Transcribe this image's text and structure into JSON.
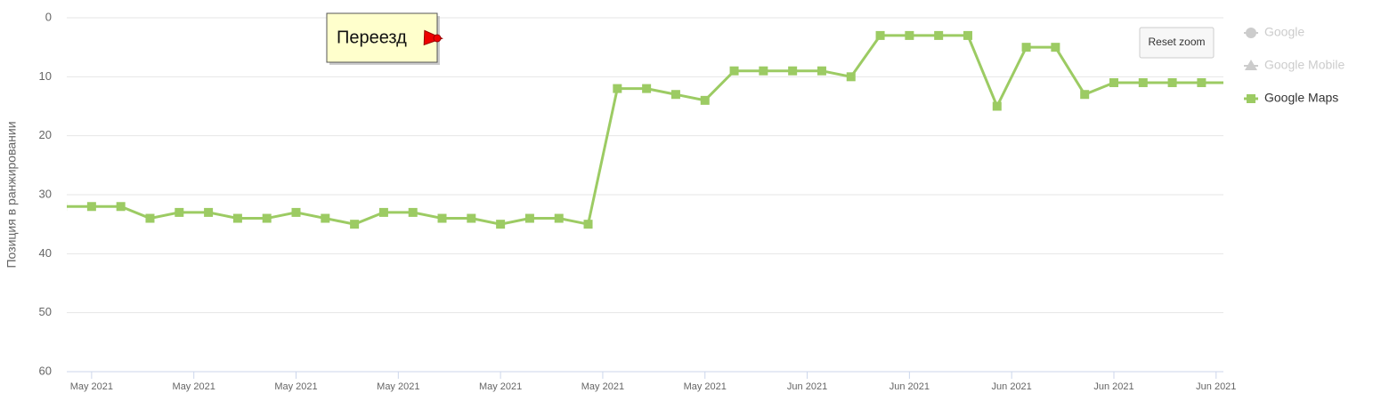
{
  "chart_data": {
    "type": "line",
    "y_axis_title": "Позиция в ранжировании",
    "ylim": [
      60,
      0
    ],
    "yticks": [
      0,
      10,
      20,
      30,
      40,
      50,
      60
    ],
    "y_reversed": true,
    "grid": true,
    "xlim": [
      -1.7,
      77.5
    ],
    "xticks": [
      {
        "value": 0,
        "label": "May 2021"
      },
      {
        "value": 7,
        "label": "May 2021"
      },
      {
        "value": 14,
        "label": "May 2021"
      },
      {
        "value": 21,
        "label": "May 2021"
      },
      {
        "value": 28,
        "label": "May 2021"
      },
      {
        "value": 35,
        "label": "May 2021"
      },
      {
        "value": 42,
        "label": "May 2021"
      },
      {
        "value": 49,
        "label": "Jun 2021"
      },
      {
        "value": 56,
        "label": "Jun 2021"
      },
      {
        "value": 63,
        "label": "Jun 2021"
      },
      {
        "value": 70,
        "label": "Jun 2021"
      },
      {
        "value": 77,
        "label": "Jun 2021"
      }
    ],
    "series": [
      {
        "name": "Google Maps",
        "color": "#9ccb63",
        "x": [
          -2,
          0,
          2,
          4,
          6,
          8,
          10,
          12,
          14,
          16,
          18,
          20,
          22,
          24,
          26,
          28,
          30,
          32,
          34,
          36,
          38,
          40,
          42,
          44,
          46,
          48,
          50,
          52,
          54,
          56,
          58,
          60,
          62,
          64,
          66,
          68,
          70,
          72,
          74,
          76,
          78
        ],
        "values": [
          32,
          32,
          32,
          34,
          33,
          33,
          34,
          34,
          33,
          34,
          35,
          33,
          33,
          34,
          34,
          35,
          34,
          34,
          35,
          12,
          12,
          13,
          14,
          9,
          9,
          9,
          9,
          10,
          3,
          3,
          3,
          3,
          15,
          5,
          5,
          13,
          11,
          11,
          11,
          11,
          11
        ]
      }
    ],
    "disabled_legend_entries": [
      {
        "name": "Google",
        "color": "#cccccc",
        "marker": "circle"
      },
      {
        "name": "Google Mobile",
        "color": "#cccccc",
        "marker": "triangle"
      }
    ],
    "annotation": {
      "text": "Переезд",
      "x": 24,
      "y": 3.5
    },
    "button": "Reset zoom"
  }
}
